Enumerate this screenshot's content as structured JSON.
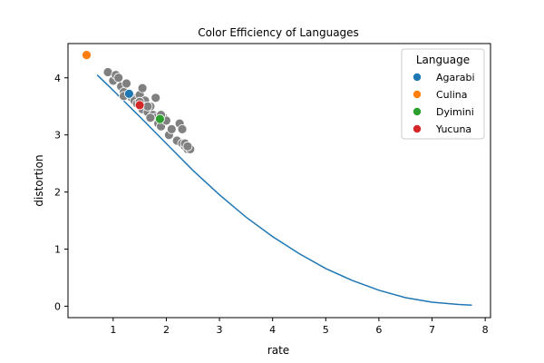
{
  "chart_data": {
    "type": "scatter",
    "title": "Color Efficiency of Languages",
    "xlabel": "rate",
    "ylabel": "distortion",
    "xlim": [
      0.15,
      8.1
    ],
    "ylim": [
      -0.2,
      4.6
    ],
    "xticks": [
      1,
      2,
      3,
      4,
      5,
      6,
      7,
      8
    ],
    "yticks": [
      0,
      1,
      2,
      3,
      4
    ],
    "grid": false,
    "legend": {
      "title": "Language",
      "placement": "top-right"
    },
    "curve": {
      "name": "",
      "color": "#1f77b4",
      "x": [
        0.7,
        1.0,
        1.5,
        2.0,
        2.5,
        3.0,
        3.5,
        4.0,
        4.5,
        5.0,
        5.5,
        6.0,
        6.5,
        7.0,
        7.5,
        7.75
      ],
      "y": [
        4.05,
        3.78,
        3.32,
        2.85,
        2.38,
        1.95,
        1.56,
        1.22,
        0.92,
        0.66,
        0.45,
        0.28,
        0.15,
        0.07,
        0.03,
        0.02
      ]
    },
    "background_points": {
      "color": "#808080",
      "x": [
        0.9,
        1.0,
        1.05,
        1.1,
        1.15,
        1.2,
        1.25,
        1.3,
        1.35,
        1.4,
        1.45,
        1.5,
        1.55,
        1.6,
        1.65,
        1.7,
        1.75,
        1.8,
        1.85,
        1.9,
        1.95,
        2.0,
        2.05,
        2.1,
        2.2,
        2.25,
        2.3,
        2.35,
        2.4,
        2.45,
        1.8,
        1.7,
        1.9,
        2.3,
        2.35,
        2.4,
        1.55,
        1.2,
        1.5,
        1.65
      ],
      "y": [
        4.1,
        3.95,
        4.05,
        4.0,
        3.85,
        3.75,
        3.9,
        3.7,
        3.65,
        3.6,
        3.55,
        3.7,
        3.45,
        3.6,
        3.4,
        3.5,
        3.35,
        3.3,
        3.2,
        3.15,
        3.3,
        3.25,
        3.0,
        3.1,
        2.9,
        3.2,
        2.85,
        2.8,
        2.75,
        2.75,
        3.65,
        3.3,
        3.35,
        3.1,
        2.85,
        2.8,
        3.82,
        3.68,
        3.58,
        3.5
      ]
    },
    "series": [
      {
        "name": "Agarabi",
        "color": "#1f77b4",
        "x": [
          1.3
        ],
        "y": [
          3.72
        ]
      },
      {
        "name": "Culina",
        "color": "#ff7f0e",
        "x": [
          0.5
        ],
        "y": [
          4.4
        ]
      },
      {
        "name": "Dyimini",
        "color": "#2ca02c",
        "x": [
          1.88
        ],
        "y": [
          3.28
        ]
      },
      {
        "name": "Yucuna",
        "color": "#d62728",
        "x": [
          1.5
        ],
        "y": [
          3.52
        ]
      }
    ]
  }
}
